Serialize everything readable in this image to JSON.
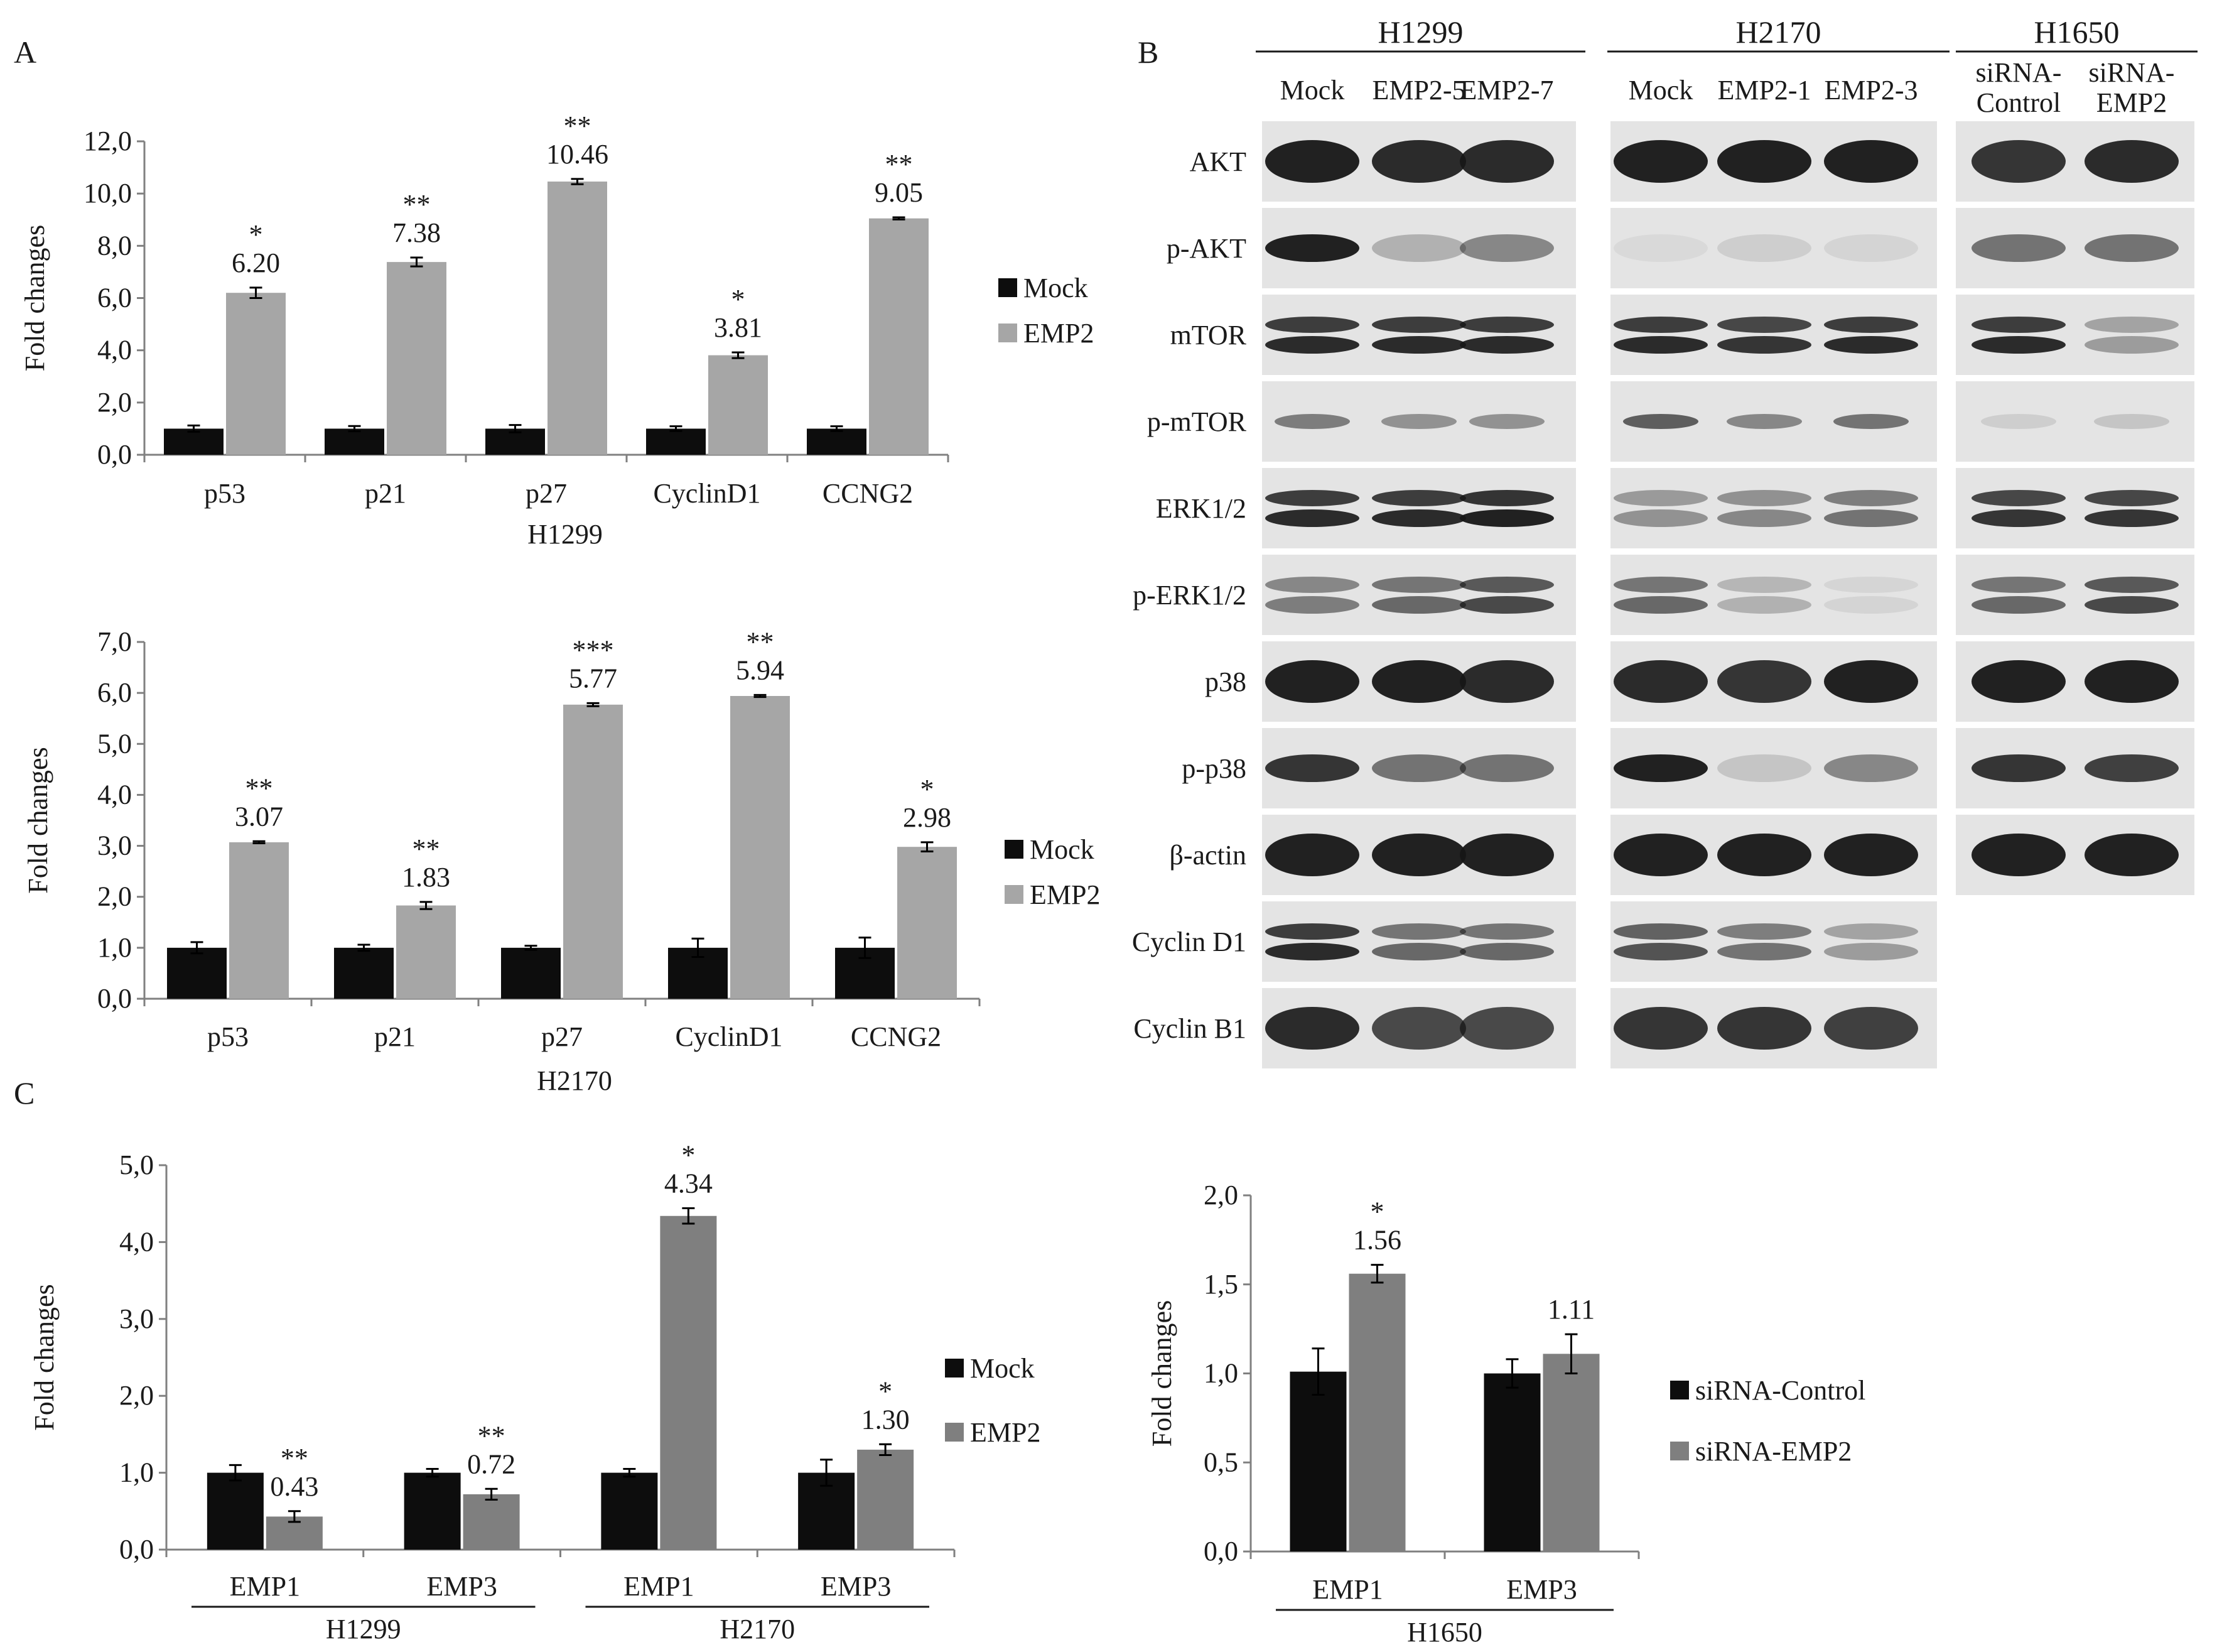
{
  "panel_labels": {
    "a": "A",
    "b": "B",
    "c": "C"
  },
  "colors": {
    "mock": "#0d0d0d",
    "emp2_light": "#a6a6a6",
    "emp2_dark": "#7f7f7f",
    "axis": "#808080",
    "text": "#1a1a1a",
    "blot_bg": "#e4e4e4",
    "blot_band": "#161616"
  },
  "western_blot": {
    "groups": [
      {
        "name": "H1299",
        "lanes": [
          "Mock",
          "EMP2-5",
          "EMP2-7"
        ]
      },
      {
        "name": "H2170",
        "lanes": [
          "Mock",
          "EMP2-1",
          "EMP2-3"
        ]
      },
      {
        "name": "H1650",
        "lanes": [
          "siRNA-Control",
          "siRNA-EMP2"
        ],
        "lane_lines": [
          [
            "siRNA-",
            "Control"
          ],
          [
            "siRNA-",
            "EMP2"
          ]
        ]
      }
    ],
    "rows": [
      {
        "label": "AKT",
        "bands": [
          [
            0.95,
            0.9,
            0.9
          ],
          [
            0.95,
            0.95,
            0.95
          ],
          [
            0.85,
            0.9
          ]
        ],
        "style": "thick"
      },
      {
        "label": "p-AKT",
        "bands": [
          [
            0.95,
            0.25,
            0.45
          ],
          [
            0.05,
            0.1,
            0.08
          ],
          [
            0.55,
            0.55
          ]
        ],
        "style": "normal"
      },
      {
        "label": "mTOR",
        "bands": [
          [
            0.9,
            0.9,
            0.9
          ],
          [
            0.9,
            0.85,
            0.9
          ],
          [
            0.9,
            0.35
          ]
        ],
        "style": "double"
      },
      {
        "label": "p-mTOR",
        "bands": [
          [
            0.5,
            0.4,
            0.4
          ],
          [
            0.65,
            0.45,
            0.55
          ],
          [
            0.1,
            0.15
          ]
        ],
        "style": "faint"
      },
      {
        "label": "ERK1/2",
        "bands": [
          [
            0.9,
            0.9,
            0.95
          ],
          [
            0.4,
            0.45,
            0.55
          ],
          [
            0.85,
            0.85
          ]
        ],
        "style": "double"
      },
      {
        "label": "p-ERK1/2",
        "bands": [
          [
            0.5,
            0.6,
            0.75
          ],
          [
            0.6,
            0.25,
            0.08
          ],
          [
            0.6,
            0.75
          ]
        ],
        "style": "double"
      },
      {
        "label": "p38",
        "bands": [
          [
            0.95,
            0.95,
            0.9
          ],
          [
            0.9,
            0.85,
            0.95
          ],
          [
            0.95,
            0.95
          ]
        ],
        "style": "thick"
      },
      {
        "label": "p-p38",
        "bands": [
          [
            0.85,
            0.55,
            0.55
          ],
          [
            0.95,
            0.15,
            0.45
          ],
          [
            0.85,
            0.8
          ]
        ],
        "style": "normal"
      },
      {
        "label": "β-actin",
        "bands": [
          [
            0.95,
            0.95,
            0.95
          ],
          [
            0.95,
            0.95,
            0.95
          ],
          [
            0.95,
            0.95
          ]
        ],
        "style": "thick"
      },
      {
        "label": "Cyclin D1",
        "bands": [
          [
            0.9,
            0.6,
            0.6
          ],
          [
            0.7,
            0.55,
            0.35
          ]
        ],
        "style": "double"
      },
      {
        "label": "Cyclin B1",
        "bands": [
          [
            0.9,
            0.75,
            0.75
          ],
          [
            0.85,
            0.85,
            0.8
          ]
        ],
        "style": "thick"
      }
    ]
  },
  "chart_data": [
    {
      "id": "A-top",
      "type": "bar",
      "xlabel": "H1299",
      "ylabel": "Fold changes",
      "ylim": [
        0,
        12
      ],
      "ytick_step": 2,
      "ytick_labels": [
        "0,0",
        "2,0",
        "4,0",
        "6,0",
        "8,0",
        "10,0",
        "12,0"
      ],
      "categories": [
        "p53",
        "p21",
        "p27",
        "CyclinD1",
        "CCNG2"
      ],
      "legend_position": "right",
      "series": [
        {
          "name": "Mock",
          "color": "#0d0d0d",
          "values": [
            1.0,
            1.0,
            1.0,
            1.0,
            1.0
          ],
          "errors": [
            0.12,
            0.1,
            0.14,
            0.09,
            0.09
          ]
        },
        {
          "name": "EMP2",
          "color": "#a6a6a6",
          "values": [
            6.2,
            7.38,
            10.46,
            3.81,
            9.05
          ],
          "errors": [
            0.2,
            0.17,
            0.1,
            0.11,
            0.04
          ],
          "labels": [
            "6.20",
            "7.38",
            "10.46",
            "3.81",
            "9.05"
          ],
          "stars": [
            "*",
            "**",
            "**",
            "*",
            "**"
          ]
        }
      ]
    },
    {
      "id": "A-bottom",
      "type": "bar",
      "xlabel": "H2170",
      "ylabel": "Fold changes",
      "ylim": [
        0,
        7
      ],
      "ytick_step": 1,
      "ytick_labels": [
        "0,0",
        "1,0",
        "2,0",
        "3,0",
        "4,0",
        "5,0",
        "6,0",
        "7,0"
      ],
      "categories": [
        "p53",
        "p21",
        "p27",
        "CyclinD1",
        "CCNG2"
      ],
      "legend_position": "right",
      "series": [
        {
          "name": "Mock",
          "color": "#0d0d0d",
          "values": [
            1.0,
            1.0,
            1.0,
            1.0,
            1.0
          ],
          "errors": [
            0.11,
            0.06,
            0.04,
            0.18,
            0.2
          ]
        },
        {
          "name": "EMP2",
          "color": "#a6a6a6",
          "values": [
            3.07,
            1.83,
            5.77,
            5.94,
            2.98
          ],
          "errors": [
            0.02,
            0.07,
            0.03,
            0.02,
            0.09
          ],
          "labels": [
            "3.07",
            "1.83",
            "5.77",
            "5.94",
            "2.98"
          ],
          "stars": [
            "**",
            "**",
            "***",
            "**",
            "*"
          ]
        }
      ]
    },
    {
      "id": "C",
      "type": "bar",
      "ylabel": "Fold changes",
      "ylim": [
        0,
        5
      ],
      "ytick_step": 1,
      "ytick_labels": [
        "0,0",
        "1,0",
        "2,0",
        "3,0",
        "4,0",
        "5,0"
      ],
      "categories": [
        "EMP1",
        "EMP3",
        "EMP1",
        "EMP3"
      ],
      "groups": [
        {
          "label": "H1299",
          "categories": [
            0,
            1
          ]
        },
        {
          "label": "H2170",
          "categories": [
            2,
            3
          ]
        }
      ],
      "legend_position": "right",
      "series": [
        {
          "name": "Mock",
          "color": "#0d0d0d",
          "values": [
            1.0,
            1.0,
            1.0,
            1.0
          ],
          "errors": [
            0.1,
            0.05,
            0.05,
            0.17
          ]
        },
        {
          "name": "EMP2",
          "color": "#7f7f7f",
          "values": [
            0.43,
            0.72,
            4.34,
            1.3
          ],
          "errors": [
            0.07,
            0.07,
            0.1,
            0.07
          ],
          "labels": [
            "0.43",
            "0.72",
            "4.34",
            "1.30"
          ],
          "stars": [
            "**",
            "**",
            "*",
            "*"
          ]
        }
      ]
    },
    {
      "id": "B-bottom",
      "type": "bar",
      "ylabel": "Fold changes",
      "ylim": [
        0,
        2
      ],
      "ytick_step": 0.5,
      "ytick_labels": [
        "0,0",
        "0,5",
        "1,0",
        "1,5",
        "2,0"
      ],
      "categories": [
        "EMP1",
        "EMP3"
      ],
      "groups": [
        {
          "label": "H1650",
          "categories": [
            0,
            1
          ]
        }
      ],
      "legend_position": "right",
      "series": [
        {
          "name": "siRNA-Control",
          "color": "#0d0d0d",
          "values": [
            1.01,
            1.0
          ],
          "errors": [
            0.13,
            0.08
          ]
        },
        {
          "name": "siRNA-EMP2",
          "color": "#7f7f7f",
          "values": [
            1.56,
            1.11
          ],
          "errors": [
            0.05,
            0.11
          ],
          "labels": [
            "1.56",
            "1.11"
          ],
          "stars": [
            "*",
            ""
          ]
        }
      ]
    }
  ]
}
